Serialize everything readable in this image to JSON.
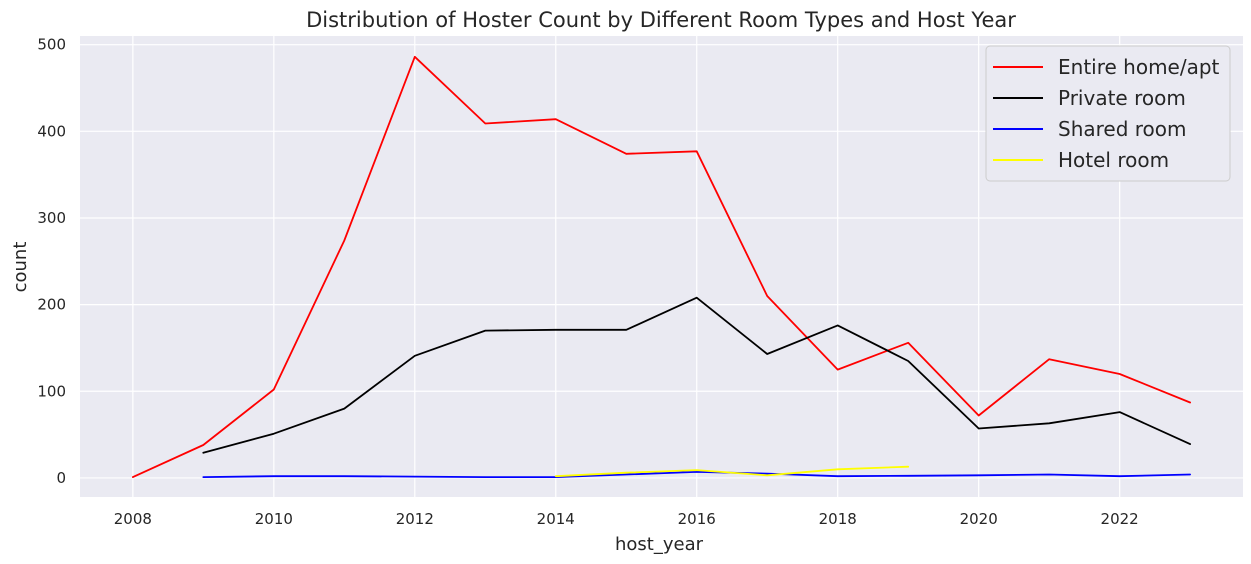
{
  "chart_data": {
    "type": "line",
    "title": "Distribution of Hoster Count by Different Room Types and Host Year",
    "xlabel": "host_year",
    "ylabel": "count",
    "xlim": [
      2007.25,
      2023.75
    ],
    "ylim": [
      -22,
      510
    ],
    "xticks": [
      2008,
      2010,
      2012,
      2014,
      2016,
      2018,
      2020,
      2022
    ],
    "yticks": [
      0,
      100,
      200,
      300,
      400,
      500
    ],
    "grid": true,
    "legend_position": "top-right",
    "series": [
      {
        "name": "Entire home/apt",
        "color": "#ff0000",
        "points": [
          [
            2008,
            1
          ],
          [
            2009,
            38
          ],
          [
            2010,
            102
          ],
          [
            2011,
            274
          ],
          [
            2012,
            486
          ],
          [
            2013,
            409
          ],
          [
            2014,
            414
          ],
          [
            2015,
            374
          ],
          [
            2016,
            377
          ],
          [
            2017,
            210
          ],
          [
            2018,
            125
          ],
          [
            2019,
            156
          ],
          [
            2020,
            72
          ],
          [
            2021,
            137
          ],
          [
            2022,
            120
          ],
          [
            2023,
            87
          ]
        ]
      },
      {
        "name": "Private room",
        "color": "#000000",
        "points": [
          [
            2009,
            29
          ],
          [
            2010,
            51
          ],
          [
            2011,
            80
          ],
          [
            2012,
            141
          ],
          [
            2013,
            170
          ],
          [
            2014,
            171
          ],
          [
            2015,
            171
          ],
          [
            2016,
            208
          ],
          [
            2017,
            143
          ],
          [
            2018,
            176
          ],
          [
            2019,
            135
          ],
          [
            2020,
            57
          ],
          [
            2021,
            63
          ],
          [
            2022,
            76
          ],
          [
            2023,
            39
          ]
        ]
      },
      {
        "name": "Shared room",
        "color": "#0000ff",
        "points": [
          [
            2009,
            1
          ],
          [
            2010,
            2
          ],
          [
            2011,
            2
          ],
          [
            2012,
            1.5
          ],
          [
            2013,
            1
          ],
          [
            2014,
            1
          ],
          [
            2015,
            4
          ],
          [
            2016,
            7
          ],
          [
            2017,
            5
          ],
          [
            2018,
            2
          ],
          [
            2019,
            2.5
          ],
          [
            2020,
            3
          ],
          [
            2021,
            4
          ],
          [
            2022,
            2
          ],
          [
            2023,
            4
          ]
        ]
      },
      {
        "name": "Hotel room",
        "color": "#ffff00",
        "points": [
          [
            2014,
            2
          ],
          [
            2015,
            6
          ],
          [
            2016,
            9
          ],
          [
            2017,
            3
          ],
          [
            2018,
            10
          ],
          [
            2019,
            13
          ]
        ]
      }
    ]
  },
  "colors": {
    "plot_background": "#eaeaf2",
    "grid": "#ffffff",
    "text": "#262626"
  }
}
